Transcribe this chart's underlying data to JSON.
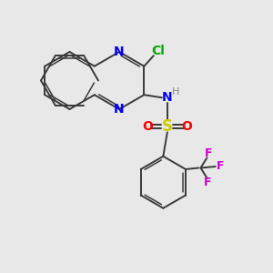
{
  "bg_color": "#e8e8e8",
  "bond_color": "#3a3a3a",
  "N_color": "#0000ff",
  "Cl_color": "#00aa00",
  "S_color": "#cccc00",
  "O_color": "#ff0000",
  "F_color": "#cc00cc",
  "H_color": "#888888",
  "figsize": [
    3.0,
    3.0
  ],
  "dpi": 100,
  "xlim": [
    0,
    10
  ],
  "ylim": [
    0,
    10
  ]
}
